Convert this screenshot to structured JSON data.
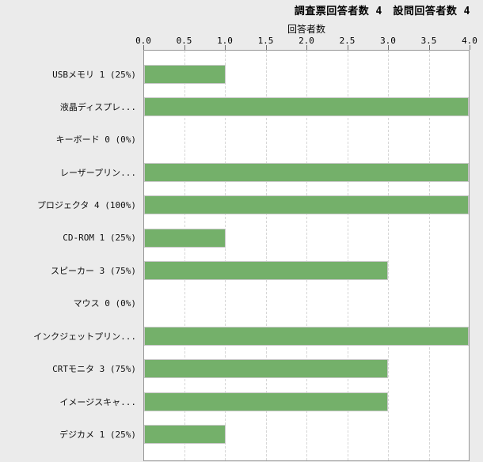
{
  "header": {
    "title": "調査票回答者数 4　設問回答者数 4"
  },
  "chart_data": {
    "type": "bar",
    "orientation": "horizontal",
    "title": "調査票回答者数 4　設問回答者数 4",
    "xlabel": "回答者数",
    "ylabel": "",
    "xlim": [
      0,
      4
    ],
    "xticks": [
      "0.0",
      "0.5",
      "1.0",
      "1.5",
      "2.0",
      "2.5",
      "3.0",
      "3.5",
      "4.0"
    ],
    "grid": "vertical-dashed",
    "legend": "none",
    "bar_color": "#74b06a",
    "plot_background": "#ffffff",
    "page_background": "#ebebeb",
    "categories": [
      "USBメモリ 1 (25%)",
      "液晶ディスプレ...",
      "キーボード 0 (0%)",
      "レーザープリン...",
      "プロジェクタ 4 (100%)",
      "CD-ROM 1 (25%)",
      "スピーカー 3 (75%)",
      "マウス 0 (0%)",
      "インクジェットプリン...",
      "CRTモニタ 3 (75%)",
      "イメージスキャ...",
      "デジカメ 1 (25%)"
    ],
    "values": [
      1,
      4,
      0,
      4,
      4,
      1,
      3,
      0,
      4,
      3,
      3,
      1
    ]
  }
}
